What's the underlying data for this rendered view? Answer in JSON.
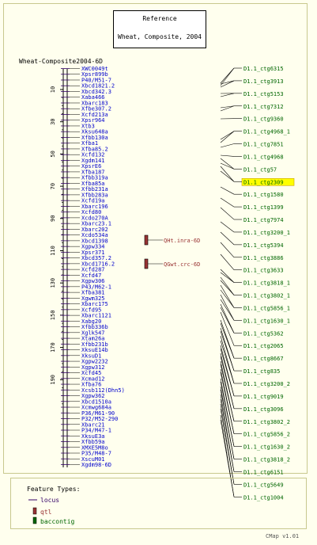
{
  "reference_box": {
    "line1": "Reference",
    "line2": "Wheat, Composite, 2004"
  },
  "map_title": "Wheat-Composite2004-6D",
  "ruler_ticks": [
    "10",
    "30",
    "50",
    "70",
    "90",
    "110",
    "130",
    "150",
    "170",
    "190"
  ],
  "loci": [
    "XWC0049t",
    "Xpsr899b",
    "P40/M51-7",
    "Xbcd1821.2",
    "Xbcd342.3",
    "Xaba466",
    "Xbarc183",
    "Xfbe307.2",
    "Xcfd213a",
    "Xpsr964",
    "Xtb3",
    "Xksu648a",
    "Xfbb130a",
    "Xfba1",
    "Xfba85.2",
    "Xcfd132",
    "Xgdm141",
    "XpsrE6",
    "Xfba187",
    "Xfbb319a",
    "Xfba85a",
    "Xfbb231a",
    "Xfbb283a",
    "Xcfd19a",
    "Xbarc196",
    "Xcfd80",
    "Xcdo270A",
    "Xbarc23.1",
    "Xbarc202",
    "Xcdo534a",
    "Xbcd1398",
    "Xgpw334",
    "Xpsr371",
    "Xbcd357.2",
    "Xbcd1716.2",
    "Xcfd287",
    "Xcfd47",
    "Xgpw306",
    "P43/M62-1",
    "Xfba381",
    "Xgwm325",
    "Xbarc175",
    "Xcfd95",
    "Xbarc1121",
    "Xabg20",
    "Xfbb336b",
    "Xglk547",
    "Xtam26a",
    "Xfbb231b",
    "XksuE14b",
    "XksuD1",
    "Xgpw2232",
    "Xgpw312",
    "Xcfd45",
    "Xcmad12",
    "Xfba76",
    "Xcsb112(Dhn5)",
    "Xgpw362",
    "Xbcd1510a",
    "Xcmwg684a",
    "P36/M61-90",
    "P32/M52-290",
    "Xbarc21",
    "P34/M47-1",
    "XksuE3a",
    "Xfbb59a",
    "XMXE5M8o",
    "P35/M48-7",
    "XscuM01",
    "Xgdm98-6D"
  ],
  "qtls": [
    {
      "label": "QHt.inra-6D",
      "color": "#993333"
    },
    {
      "label": "QGwt.crc-6D",
      "color": "#993333"
    }
  ],
  "contigs": [
    {
      "label": "D1.1_ctg6315",
      "highlighted": false
    },
    {
      "label": "D1.1_ctg3913",
      "highlighted": false
    },
    {
      "label": "D1.1_ctg5153",
      "highlighted": false
    },
    {
      "label": "D1.1_ctg7312",
      "highlighted": false
    },
    {
      "label": "D1.1_ctg9360",
      "highlighted": false
    },
    {
      "label": "D1.1_ctg4968_1",
      "highlighted": false
    },
    {
      "label": "D1.1_ctg7851",
      "highlighted": false
    },
    {
      "label": "D1.1_ctg4968",
      "highlighted": false
    },
    {
      "label": "D1.1_ctg57",
      "highlighted": false
    },
    {
      "label": "D1.1_ctg2309",
      "highlighted": true
    },
    {
      "label": "D1.1_ctg1580",
      "highlighted": false
    },
    {
      "label": "D1.1_ctg1399",
      "highlighted": false
    },
    {
      "label": "D1.1_ctg7974",
      "highlighted": false
    },
    {
      "label": "D1.1_ctg3200_1",
      "highlighted": false
    },
    {
      "label": "D1.1_ctg5394",
      "highlighted": false
    },
    {
      "label": "D1.1_ctg3886",
      "highlighted": false
    },
    {
      "label": "D1.1_ctg3633",
      "highlighted": false
    },
    {
      "label": "D1.1_ctg3818_1",
      "highlighted": false
    },
    {
      "label": "D1.1_ctg3802_1",
      "highlighted": false
    },
    {
      "label": "D1.1_ctg5856_1",
      "highlighted": false
    },
    {
      "label": "D1.1_ctg1630_1",
      "highlighted": false
    },
    {
      "label": "D1.1_ctg5362",
      "highlighted": false
    },
    {
      "label": "D1.1_ctg2065",
      "highlighted": false
    },
    {
      "label": "D1.1_ctg8667",
      "highlighted": false
    },
    {
      "label": "D1.1_ctg835",
      "highlighted": false
    },
    {
      "label": "D1.1_ctg3200_2",
      "highlighted": false
    },
    {
      "label": "D1.1_ctg9019",
      "highlighted": false
    },
    {
      "label": "D1.1_ctg3096",
      "highlighted": false
    },
    {
      "label": "D1.1_ctg3802_2",
      "highlighted": false
    },
    {
      "label": "D1.1_ctg5856_2",
      "highlighted": false
    },
    {
      "label": "D1.1_ctg1630_2",
      "highlighted": false
    },
    {
      "label": "D1.1_ctg3818_2",
      "highlighted": false
    },
    {
      "label": "D1.1_ctg6151",
      "highlighted": false
    },
    {
      "label": "D1.1_ctg5649",
      "highlighted": false
    },
    {
      "label": "D1.1_ctg1004",
      "highlighted": false
    }
  ],
  "legend": {
    "title": "Feature Types:",
    "items": [
      {
        "label": "locus",
        "icon": "line-icon"
      },
      {
        "label": "qtl",
        "icon": "qtl-box-icon"
      },
      {
        "label": "baccontig",
        "icon": "contig-box-icon"
      }
    ]
  },
  "footer": "CMap v1.01",
  "colors": {
    "background": "#ffffee",
    "border": "#c8c88e",
    "locus_text": "#0000cc",
    "contig_text": "#006600",
    "qtl_text": "#993333",
    "highlight": "#ffff00",
    "line": "#000000"
  }
}
